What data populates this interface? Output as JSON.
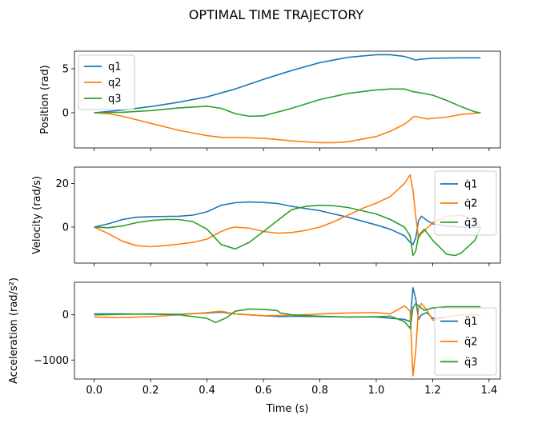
{
  "figure_title": "OPTIMAL TIME TRAJECTORY",
  "chart_data": [
    {
      "type": "line",
      "ylabel": "Position (rad)",
      "xlim": [
        -0.07,
        1.44
      ],
      "ylim": [
        -4.0,
        7.0
      ],
      "yticks": [
        {
          "v": 0,
          "label": "0"
        },
        {
          "v": 5,
          "label": "5"
        }
      ],
      "xtick_values": [
        0.0,
        0.2,
        0.4,
        0.6,
        0.8,
        1.0,
        1.2,
        1.4
      ],
      "show_xticklabels": false,
      "legend_placement": "top-left",
      "series": [
        {
          "name": "q1",
          "color": "#1f77b4",
          "x": [
            0.0,
            0.1,
            0.2,
            0.3,
            0.4,
            0.5,
            0.6,
            0.7,
            0.8,
            0.9,
            1.0,
            1.05,
            1.1,
            1.12,
            1.14,
            1.16,
            1.2,
            1.3,
            1.37
          ],
          "y": [
            0.0,
            0.3,
            0.7,
            1.2,
            1.8,
            2.7,
            3.8,
            4.8,
            5.7,
            6.3,
            6.6,
            6.6,
            6.4,
            6.2,
            6.0,
            6.1,
            6.2,
            6.25,
            6.25
          ]
        },
        {
          "name": "q2",
          "color": "#ff7f0e",
          "x": [
            0.0,
            0.05,
            0.1,
            0.2,
            0.3,
            0.4,
            0.45,
            0.5,
            0.6,
            0.7,
            0.8,
            0.85,
            0.9,
            1.0,
            1.05,
            1.1,
            1.12,
            1.13,
            1.14,
            1.15,
            1.18,
            1.25,
            1.3,
            1.37
          ],
          "y": [
            0.0,
            -0.1,
            -0.4,
            -1.2,
            -2.0,
            -2.6,
            -2.8,
            -2.8,
            -2.9,
            -3.2,
            -3.4,
            -3.4,
            -3.3,
            -2.7,
            -2.1,
            -1.3,
            -0.8,
            -0.5,
            -0.4,
            -0.5,
            -0.7,
            -0.5,
            -0.2,
            0.0
          ]
        },
        {
          "name": "q3",
          "color": "#2ca02c",
          "x": [
            0.0,
            0.1,
            0.2,
            0.3,
            0.4,
            0.45,
            0.5,
            0.55,
            0.6,
            0.7,
            0.8,
            0.9,
            1.0,
            1.05,
            1.1,
            1.13,
            1.15,
            1.2,
            1.25,
            1.3,
            1.35,
            1.37
          ],
          "y": [
            0.0,
            0.05,
            0.25,
            0.55,
            0.75,
            0.5,
            -0.1,
            -0.4,
            -0.35,
            0.5,
            1.5,
            2.2,
            2.6,
            2.7,
            2.7,
            2.4,
            2.3,
            2.0,
            1.4,
            0.7,
            0.1,
            0.0
          ]
        }
      ],
      "legend": [
        "q1",
        "q2",
        "q3"
      ]
    },
    {
      "type": "line",
      "ylabel": "Velocity (rad/s)",
      "xlim": [
        -0.07,
        1.44
      ],
      "ylim": [
        -16.5,
        27.5
      ],
      "yticks": [
        {
          "v": 0,
          "label": "0"
        },
        {
          "v": 20,
          "label": "20"
        }
      ],
      "xtick_values": [
        0.0,
        0.2,
        0.4,
        0.6,
        0.8,
        1.0,
        1.2,
        1.4
      ],
      "show_xticklabels": false,
      "legend_placement": "top-right",
      "series": [
        {
          "name": "q̇1",
          "color": "#1f77b4",
          "x": [
            0.0,
            0.05,
            0.1,
            0.15,
            0.2,
            0.3,
            0.35,
            0.4,
            0.45,
            0.5,
            0.55,
            0.6,
            0.65,
            0.7,
            0.8,
            0.9,
            1.0,
            1.05,
            1.1,
            1.12,
            1.13,
            1.14,
            1.15,
            1.16,
            1.18,
            1.2,
            1.25,
            1.3,
            1.35,
            1.37
          ],
          "y": [
            0.0,
            1.5,
            3.5,
            4.5,
            4.8,
            5.0,
            5.5,
            7.0,
            10.0,
            11.2,
            11.5,
            11.3,
            10.8,
            9.5,
            7.5,
            4.5,
            1.0,
            -1.0,
            -4.0,
            -7.0,
            -8.0,
            -5.0,
            3.0,
            5.0,
            3.0,
            1.5,
            0.5,
            0.0,
            0.0,
            0.0
          ]
        },
        {
          "name": "q̇2",
          "color": "#ff7f0e",
          "x": [
            0.0,
            0.05,
            0.1,
            0.15,
            0.2,
            0.25,
            0.3,
            0.35,
            0.4,
            0.45,
            0.48,
            0.5,
            0.55,
            0.6,
            0.65,
            0.7,
            0.75,
            0.8,
            0.85,
            0.9,
            0.95,
            1.0,
            1.05,
            1.1,
            1.12,
            1.13,
            1.14,
            1.15,
            1.16,
            1.2,
            1.25,
            1.3,
            1.35,
            1.37
          ],
          "y": [
            0.0,
            -3.0,
            -6.5,
            -8.5,
            -9.0,
            -8.5,
            -7.8,
            -7.0,
            -5.5,
            -2.0,
            -0.5,
            0.0,
            -0.5,
            -2.0,
            -2.8,
            -2.5,
            -1.5,
            0.0,
            2.5,
            5.5,
            8.5,
            11.0,
            14.0,
            20.0,
            24.0,
            17.0,
            5.0,
            -5.0,
            -3.0,
            2.0,
            5.0,
            5.5,
            3.0,
            0.0
          ]
        },
        {
          "name": "q̇3",
          "color": "#2ca02c",
          "x": [
            0.0,
            0.05,
            0.1,
            0.15,
            0.2,
            0.25,
            0.3,
            0.35,
            0.4,
            0.45,
            0.5,
            0.55,
            0.6,
            0.65,
            0.7,
            0.75,
            0.8,
            0.85,
            0.9,
            1.0,
            1.05,
            1.1,
            1.12,
            1.13,
            1.14,
            1.15,
            1.17,
            1.2,
            1.25,
            1.28,
            1.3,
            1.35,
            1.37
          ],
          "y": [
            0.0,
            -0.3,
            0.5,
            2.0,
            3.0,
            3.5,
            3.5,
            2.5,
            -1.0,
            -8.0,
            -10.0,
            -7.0,
            -2.0,
            3.0,
            8.0,
            9.5,
            10.0,
            9.8,
            9.0,
            6.0,
            3.5,
            0.0,
            -4.0,
            -13.0,
            -11.0,
            -4.0,
            -1.0,
            -6.0,
            -12.5,
            -13.0,
            -12.0,
            -6.0,
            0.0
          ]
        }
      ],
      "legend": [
        "q̇1",
        "q̇2",
        "q̇3"
      ]
    },
    {
      "type": "line",
      "ylabel": "Acceleration (rad/s²)",
      "xlabel": "Time (s)",
      "xlim": [
        -0.07,
        1.44
      ],
      "ylim": [
        -1420,
        720
      ],
      "yticks": [
        {
          "v": -1000,
          "label": "−1000"
        },
        {
          "v": 0,
          "label": "0"
        }
      ],
      "xtick_values": [
        0.0,
        0.2,
        0.4,
        0.6,
        0.8,
        1.0,
        1.2,
        1.4
      ],
      "xtick_labels": [
        "0.0",
        "0.2",
        "0.4",
        "0.6",
        "0.8",
        "1.0",
        "1.2",
        "1.4"
      ],
      "show_xticklabels": true,
      "legend_placement": "bottom-right",
      "series": [
        {
          "name": "q̈1",
          "color": "#1f77b4",
          "x": [
            0.0,
            0.1,
            0.2,
            0.3,
            0.4,
            0.45,
            0.5,
            0.6,
            0.66,
            0.7,
            0.8,
            0.9,
            1.0,
            1.1,
            1.12,
            1.13,
            1.14,
            1.15,
            1.16,
            1.18,
            1.2,
            1.25,
            1.3,
            1.37
          ],
          "y": [
            20,
            20,
            15,
            10,
            40,
            60,
            20,
            -20,
            -40,
            -30,
            -40,
            -50,
            -50,
            -100,
            -150,
            600,
            350,
            -100,
            0,
            50,
            -80,
            -50,
            0,
            0
          ]
        },
        {
          "name": "q̈2",
          "color": "#ff7f0e",
          "x": [
            0.0,
            0.1,
            0.2,
            0.3,
            0.4,
            0.45,
            0.5,
            0.6,
            0.7,
            0.8,
            0.9,
            1.0,
            1.05,
            1.1,
            1.12,
            1.13,
            1.14,
            1.15,
            1.16,
            1.18,
            1.2,
            1.25,
            1.3,
            1.37
          ],
          "y": [
            -50,
            -60,
            -40,
            0,
            50,
            80,
            20,
            -20,
            -10,
            20,
            40,
            50,
            20,
            200,
            80,
            -1350,
            -800,
            150,
            250,
            100,
            -120,
            -50,
            0,
            0
          ]
        },
        {
          "name": "q̈3",
          "color": "#2ca02c",
          "x": [
            0.0,
            0.1,
            0.2,
            0.3,
            0.4,
            0.43,
            0.47,
            0.5,
            0.55,
            0.6,
            0.65,
            0.66,
            0.7,
            0.8,
            0.9,
            1.0,
            1.05,
            1.1,
            1.12,
            1.13,
            1.14,
            1.15,
            1.17,
            1.2,
            1.25,
            1.3,
            1.37
          ],
          "y": [
            0,
            10,
            20,
            0,
            -80,
            -170,
            -60,
            80,
            130,
            120,
            90,
            40,
            0,
            -30,
            -50,
            -40,
            -30,
            -150,
            -300,
            150,
            250,
            200,
            100,
            150,
            180,
            180,
            180
          ]
        }
      ],
      "legend": [
        "q̈1",
        "q̈2",
        "q̈3"
      ]
    }
  ]
}
